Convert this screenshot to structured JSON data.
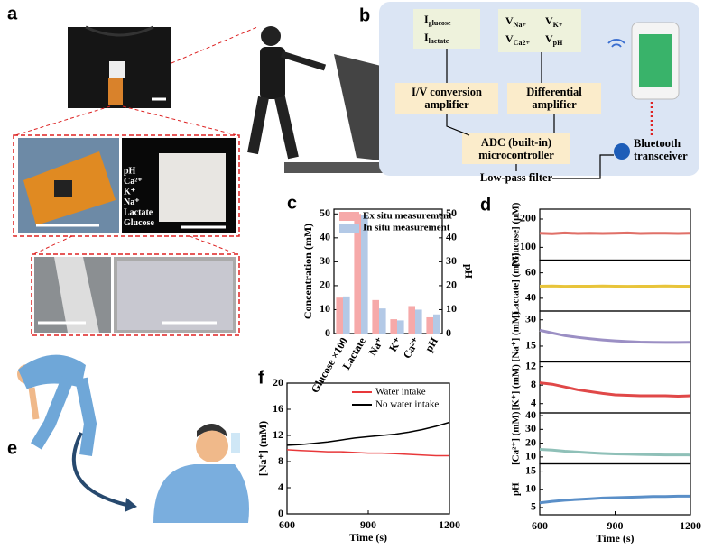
{
  "panel_labels": [
    "a",
    "b",
    "c",
    "d",
    "e",
    "f"
  ],
  "photo_labels": [
    "pH",
    "Ca²⁺",
    "K⁺",
    "Na⁺",
    "Lactate",
    "Glucose"
  ],
  "diagram": {
    "current_inputs": [
      {
        "main": "I",
        "sub": "glucose"
      },
      {
        "main": "I",
        "sub": "lactate"
      }
    ],
    "voltage_inputs": [
      {
        "main": "V",
        "sub": "Na+"
      },
      {
        "main": "V",
        "sub": "K+"
      },
      {
        "main": "V",
        "sub": "Ca2+"
      },
      {
        "main": "V",
        "sub": "pH"
      }
    ],
    "nodes": [
      {
        "lines": [
          "I/V conversion",
          "amplifier"
        ]
      },
      {
        "lines": [
          "Differential",
          "amplifier"
        ]
      },
      {
        "lines": [
          "ADC (built-in)",
          "microcontroller"
        ]
      },
      {
        "lines": [
          "Low-pass filter"
        ]
      },
      {
        "lines": [
          "Bluetooth",
          "transceiver"
        ]
      }
    ]
  },
  "chart_data": [
    {
      "type": "bar",
      "ylabel": "Concentration (mM)",
      "y2label": "pH",
      "categories": [
        "Glucose ×100",
        "Lactate",
        "Na⁺",
        "K⁺",
        "Ca²⁺",
        "pH"
      ],
      "series": [
        {
          "name": "Ex situ measurement",
          "color": "#f6a9a9",
          "values": [
            15,
            50,
            14,
            6,
            11.5,
            6.8
          ]
        },
        {
          "name": "In situ measurement",
          "color": "#b3c9e6",
          "values": [
            15.5,
            49.5,
            10.5,
            5.5,
            10,
            8
          ]
        }
      ],
      "ylim": [
        0,
        52
      ],
      "yticks": [
        0,
        10,
        20,
        30,
        40,
        50
      ],
      "y2lim": [
        0,
        52
      ],
      "y2ticks": [
        0,
        10,
        20,
        30,
        40,
        50
      ],
      "legend": "upper right"
    },
    {
      "type": "line",
      "ylabel": "[Glucose] (μM)",
      "color": "#e07068",
      "x": [
        600,
        650,
        700,
        750,
        800,
        850,
        900,
        950,
        1000,
        1050,
        1100,
        1150,
        1200
      ],
      "values": [
        150,
        148,
        151,
        149,
        150,
        149,
        150,
        151,
        149,
        150,
        150,
        149,
        150
      ],
      "xlim": [
        600,
        1200
      ],
      "ylim": [
        55,
        235
      ],
      "yticks": [
        100,
        200
      ]
    },
    {
      "type": "line",
      "ylabel": "[Lactate] (mM)",
      "color": "#e8c43a",
      "x": [
        600,
        650,
        700,
        750,
        800,
        850,
        900,
        950,
        1000,
        1050,
        1100,
        1150,
        1200
      ],
      "values": [
        49.5,
        49.6,
        49.4,
        49.5,
        49.5,
        49.6,
        49.5,
        49.4,
        49.5,
        49.5,
        49.6,
        49.5,
        49.5
      ],
      "xlim": [
        600,
        1200
      ],
      "ylim": [
        30,
        70
      ],
      "yticks": [
        40,
        60
      ]
    },
    {
      "type": "line",
      "ylabel": "[Na⁺] (mM)",
      "color": "#9b8fc4",
      "x": [
        600,
        650,
        700,
        750,
        800,
        850,
        900,
        950,
        1000,
        1050,
        1100,
        1150,
        1200
      ],
      "values": [
        24,
        22.5,
        21,
        20,
        19.2,
        18.5,
        18,
        17.6,
        17.3,
        17.2,
        17.1,
        17.1,
        17.2
      ],
      "xlim": [
        600,
        1200
      ],
      "ylim": [
        6,
        35
      ],
      "yticks": [
        15,
        30
      ]
    },
    {
      "type": "line",
      "ylabel": "[K⁺] (mM)",
      "color": "#e04848",
      "x": [
        600,
        650,
        700,
        750,
        800,
        850,
        900,
        950,
        1000,
        1050,
        1100,
        1150,
        1200
      ],
      "values": [
        8.5,
        8.2,
        7.6,
        7,
        6.6,
        6.2,
        5.9,
        5.8,
        5.7,
        5.7,
        5.7,
        5.6,
        5.7
      ],
      "xlim": [
        600,
        1200
      ],
      "ylim": [
        2,
        13
      ],
      "yticks": [
        4,
        8,
        12
      ]
    },
    {
      "type": "line",
      "ylabel": "[Ca²⁺] (mM)",
      "color": "#8fc0b8",
      "x": [
        600,
        650,
        700,
        750,
        800,
        850,
        900,
        950,
        1000,
        1050,
        1100,
        1150,
        1200
      ],
      "values": [
        15.5,
        15,
        14.2,
        13.6,
        13,
        12.5,
        12.2,
        12,
        11.8,
        11.6,
        11.5,
        11.5,
        11.4
      ],
      "xlim": [
        600,
        1200
      ],
      "ylim": [
        5,
        42
      ],
      "yticks": [
        10,
        20,
        30,
        40
      ]
    },
    {
      "type": "line",
      "ylabel": "pH",
      "color": "#5a8fc8",
      "x": [
        600,
        650,
        700,
        750,
        800,
        850,
        900,
        950,
        1000,
        1050,
        1100,
        1150,
        1200
      ],
      "values": [
        6.3,
        6.7,
        7,
        7.2,
        7.4,
        7.6,
        7.7,
        7.8,
        7.9,
        8,
        8,
        8.1,
        8.1
      ],
      "xlim": [
        600,
        1200
      ],
      "ylim": [
        3,
        17
      ],
      "yticks": [
        5,
        10,
        15
      ],
      "xticks": [
        600,
        900,
        1200
      ],
      "xlabel": "Time (s)"
    },
    {
      "type": "line",
      "ylabel": "[Na⁺] (mM)",
      "xlabel": "Time (s)",
      "x": [
        600,
        650,
        700,
        750,
        800,
        850,
        900,
        950,
        1000,
        1050,
        1100,
        1150,
        1200
      ],
      "series": [
        {
          "name": "Water intake",
          "color": "#e8383a",
          "values": [
            9.8,
            9.7,
            9.6,
            9.5,
            9.5,
            9.4,
            9.3,
            9.3,
            9.2,
            9.1,
            9.0,
            8.9,
            8.9
          ]
        },
        {
          "name": "No water intake",
          "color": "#000000",
          "values": [
            10.5,
            10.6,
            10.8,
            11,
            11.3,
            11.6,
            11.8,
            12,
            12.2,
            12.5,
            12.9,
            13.4,
            14
          ]
        }
      ],
      "xlim": [
        600,
        1200
      ],
      "ylim": [
        0,
        20
      ],
      "yticks": [
        0,
        4,
        8,
        12,
        16,
        20
      ],
      "xticks": [
        600,
        900,
        1200
      ],
      "legend": "upper right"
    }
  ]
}
